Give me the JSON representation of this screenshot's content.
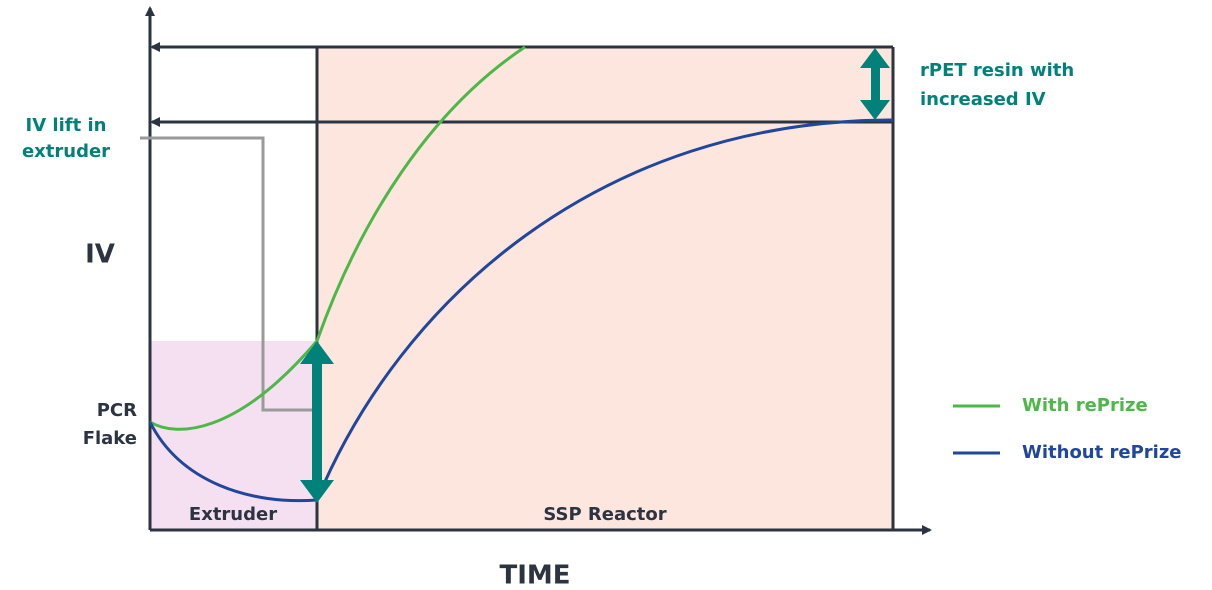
{
  "axis_labels": {
    "y": "IV",
    "x": "TIME"
  },
  "regions": {
    "extruder": "Extruder",
    "ssp": "SSP Reactor"
  },
  "annotations": {
    "iv_lift": [
      "IV lift in",
      "extruder"
    ],
    "rpet": [
      "rPET resin with",
      "increased IV"
    ],
    "pcr": [
      "PCR",
      "Flake"
    ]
  },
  "legend": [
    "With rePrize",
    "Without rePrize"
  ]
}
